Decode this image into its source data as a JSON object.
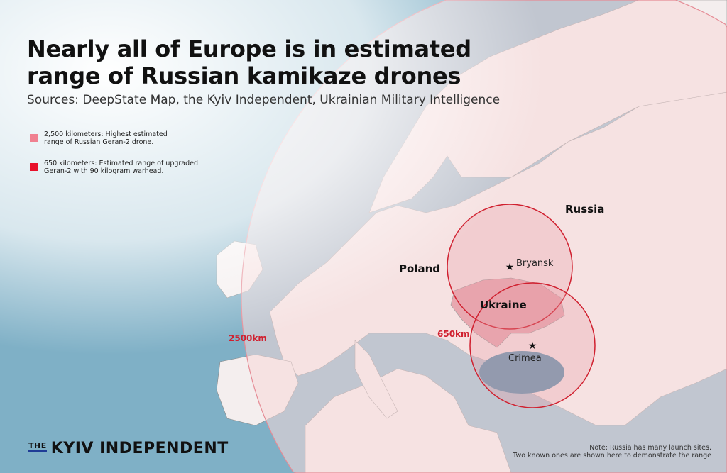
{
  "title_lines": [
    "Nearly all of Europe is in estimated",
    "range of Russian kamikaze drones"
  ],
  "sources": "Sources: DeepState Map, the Kyiv Independent, Ukrainian Military Intelligence",
  "legend": [
    {
      "color": "#f08090",
      "line1": "2,500 kilometers: Highest estimated",
      "line2": "range of Russian Geran-2 drone."
    },
    {
      "color": "#e8102a",
      "line1": "650 kilometers: Estimated range of upgraded",
      "line2": "Geran-2 with 90 kilogram warhead."
    }
  ],
  "labels": {
    "russia": "Russia",
    "poland": "Poland",
    "ukraine": "Ukraine"
  },
  "launch_sites": [
    {
      "name": "Bryansk",
      "icon": "star-icon"
    },
    {
      "name": "Crimea",
      "icon": "star-icon"
    }
  ],
  "ranges": {
    "large": "2500km",
    "small": "650km"
  },
  "note": [
    "Note: Russia has many launch sites.",
    "Two known ones are shown here to demonstrate the range"
  ],
  "logo": {
    "the": "THE",
    "name": "KYIV INDEPENDENT"
  },
  "colors": {
    "sea": "#7fb0c6",
    "land": "#f6ecec",
    "range_large": "#f9dede",
    "range_small": "#f0a8b0",
    "circle_stroke": "#d0202f"
  }
}
